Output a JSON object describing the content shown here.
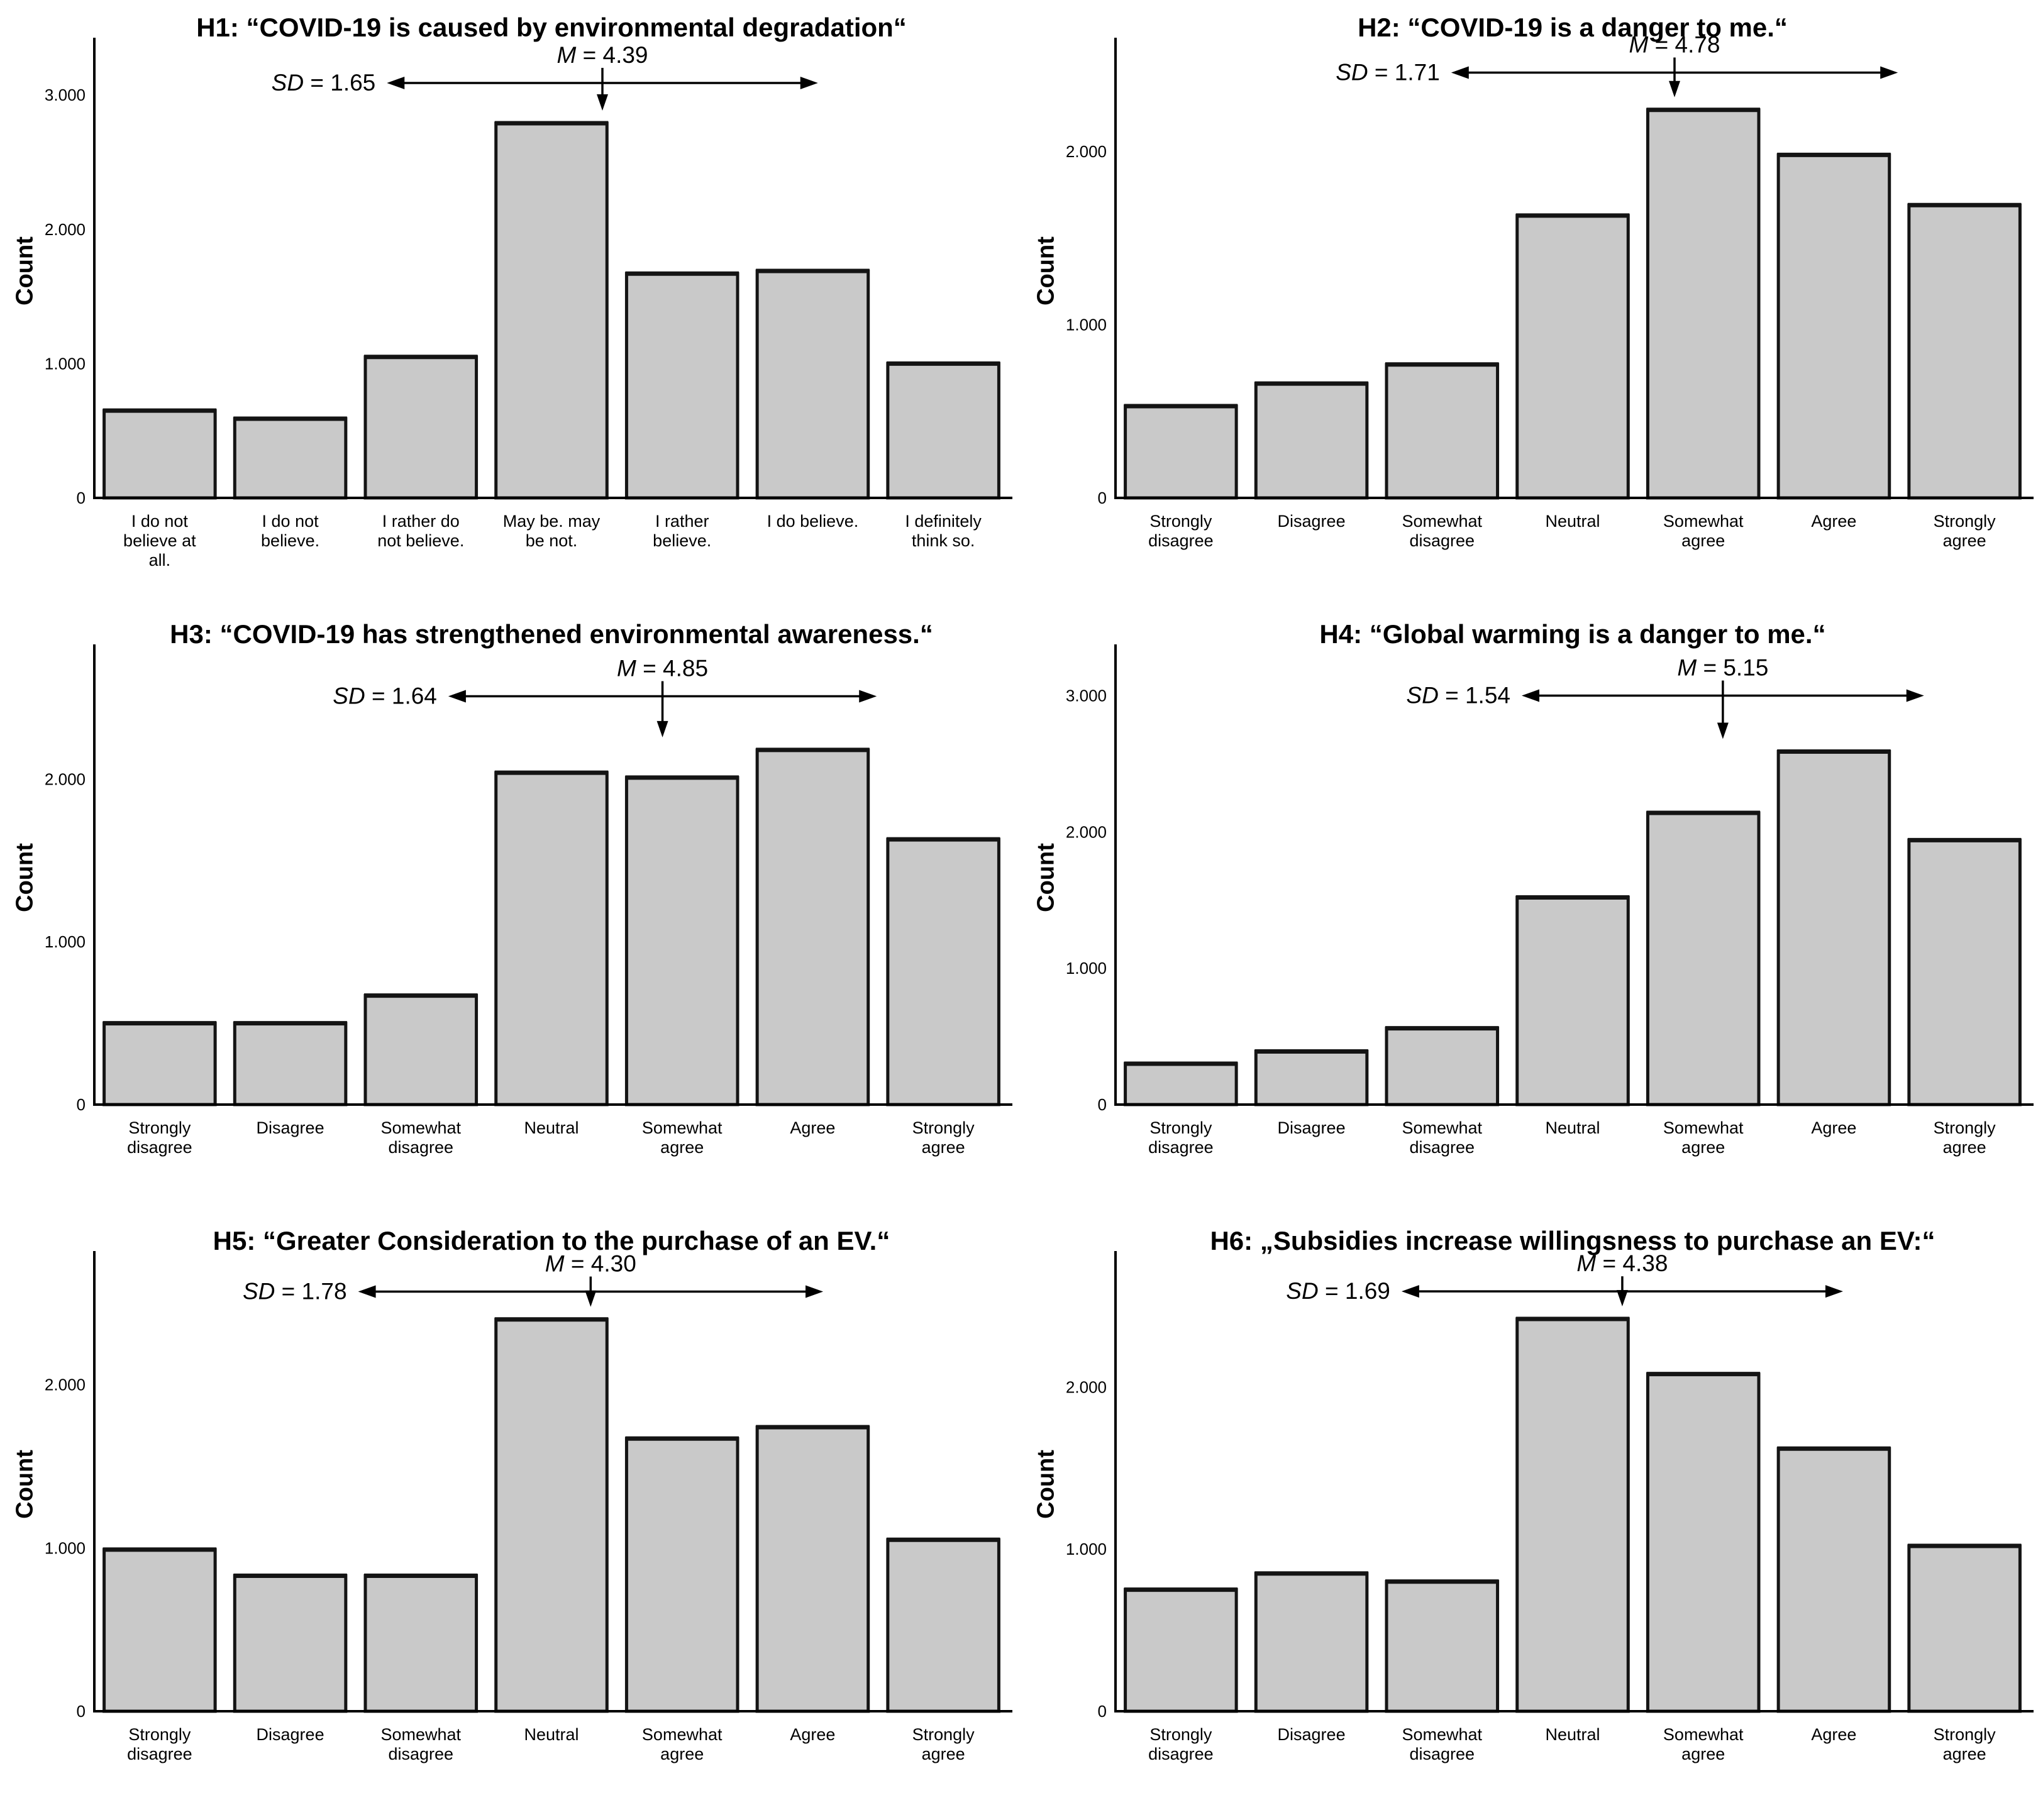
{
  "figure": {
    "background": "#ffffff",
    "text_color": "#000000",
    "bar_fill": "#c9c9c9",
    "bar_stroke": "#141414",
    "axis_color": "#000000"
  },
  "chart_data": [
    {
      "id": "H1",
      "type": "bar",
      "title": "H1: “COVID-19 is caused by environmental degradation“",
      "ylabel": "Count",
      "m_label": "M = 4.39",
      "sd_label": "SD = 1.65",
      "mean": 4.39,
      "sd": 1.65,
      "ymax": 3380,
      "arrow_y": 3090,
      "yticks": [
        {
          "value": 0,
          "label": "0"
        },
        {
          "value": 1000,
          "label": "1.000"
        },
        {
          "value": 2000,
          "label": "2.000"
        },
        {
          "value": 3000,
          "label": "3.000"
        }
      ],
      "categories": [
        [
          "I do not",
          "believe at",
          "all."
        ],
        [
          "I do not",
          "believe."
        ],
        [
          "I rather do",
          "not believe."
        ],
        [
          "May be. may",
          "be not."
        ],
        [
          "I rather",
          "believe."
        ],
        [
          "I do believe."
        ],
        [
          "I definitely",
          "think so."
        ]
      ],
      "values": [
        650,
        590,
        1050,
        2790,
        1670,
        1690,
        1000
      ]
    },
    {
      "id": "H2",
      "type": "bar",
      "title": "H2: “COVID-19 is a danger to me.“",
      "ylabel": "Count",
      "m_label": "M = 4.78",
      "sd_label": "SD = 1.71",
      "mean": 4.78,
      "sd": 1.71,
      "ymax": 2620,
      "arrow_y": 2455,
      "yticks": [
        {
          "value": 0,
          "label": "0"
        },
        {
          "value": 1000,
          "label": "1.000"
        },
        {
          "value": 2000,
          "label": "2.000"
        }
      ],
      "categories": [
        [
          "Strongly",
          "disagree"
        ],
        [
          "Disagree"
        ],
        [
          "Somewhat",
          "disagree"
        ],
        [
          "Neutral"
        ],
        [
          "Somewhat",
          "agree"
        ],
        [
          "Agree"
        ],
        [
          "Strongly",
          "agree"
        ]
      ],
      "values": [
        530,
        660,
        770,
        1630,
        2240,
        1980,
        1690
      ]
    },
    {
      "id": "H3",
      "type": "bar",
      "title": "H3: “COVID-19 has strengthened environmental awareness.“",
      "ylabel": "Count",
      "m_label": "M = 4.85",
      "sd_label": "SD = 1.64",
      "mean": 4.85,
      "sd": 1.64,
      "ymax": 2790,
      "arrow_y": 2510,
      "yticks": [
        {
          "value": 0,
          "label": "0"
        },
        {
          "value": 1000,
          "label": "1.000"
        },
        {
          "value": 2000,
          "label": "2.000"
        }
      ],
      "categories": [
        [
          "Strongly",
          "disagree"
        ],
        [
          "Disagree"
        ],
        [
          "Somewhat",
          "disagree"
        ],
        [
          "Neutral"
        ],
        [
          "Somewhat",
          "agree"
        ],
        [
          "Agree"
        ],
        [
          "Strongly",
          "agree"
        ]
      ],
      "values": [
        500,
        500,
        670,
        2040,
        2010,
        2180,
        1630
      ]
    },
    {
      "id": "H4",
      "type": "bar",
      "title": "H4: “Global warming is a danger to me.“",
      "ylabel": "Count",
      "m_label": "M = 5.15",
      "sd_label": "SD = 1.54",
      "mean": 5.15,
      "sd": 1.54,
      "ymax": 3330,
      "arrow_y": 3000,
      "yticks": [
        {
          "value": 0,
          "label": "0"
        },
        {
          "value": 1000,
          "label": "1.000"
        },
        {
          "value": 2000,
          "label": "2.000"
        },
        {
          "value": 3000,
          "label": "3.000"
        }
      ],
      "categories": [
        [
          "Strongly",
          "disagree"
        ],
        [
          "Disagree"
        ],
        [
          "Somewhat",
          "disagree"
        ],
        [
          "Neutral"
        ],
        [
          "Somewhat",
          "agree"
        ],
        [
          "Agree"
        ],
        [
          "Strongly",
          "agree"
        ]
      ],
      "values": [
        300,
        390,
        560,
        1520,
        2140,
        2590,
        1940
      ]
    },
    {
      "id": "H5",
      "type": "bar",
      "title": "H5: “Greater Consideration to the purchase of an EV.“",
      "ylabel": "Count",
      "m_label": "M = 4.30",
      "sd_label": "SD = 1.78",
      "mean": 4.3,
      "sd": 1.78,
      "ymax": 2780,
      "arrow_y": 2570,
      "yticks": [
        {
          "value": 0,
          "label": "0"
        },
        {
          "value": 1000,
          "label": "1.000"
        },
        {
          "value": 2000,
          "label": "2.000"
        }
      ],
      "categories": [
        [
          "Strongly",
          "disagree"
        ],
        [
          "Disagree"
        ],
        [
          "Somewhat",
          "disagree"
        ],
        [
          "Neutral"
        ],
        [
          "Somewhat",
          "agree"
        ],
        [
          "Agree"
        ],
        [
          "Strongly",
          "agree"
        ]
      ],
      "values": [
        990,
        830,
        830,
        2400,
        1670,
        1740,
        1050
      ]
    },
    {
      "id": "H6",
      "type": "bar",
      "title": "H6: „Subsidies increase willingsness to purchase an EV:“",
      "ylabel": "Count",
      "m_label": "M = 4.38",
      "sd_label": "SD = 1.69",
      "mean": 4.38,
      "sd": 1.69,
      "ymax": 2800,
      "arrow_y": 2590,
      "yticks": [
        {
          "value": 0,
          "label": "0"
        },
        {
          "value": 1000,
          "label": "1.000"
        },
        {
          "value": 2000,
          "label": "2.000"
        }
      ],
      "categories": [
        [
          "Strongly",
          "disagree"
        ],
        [
          "Disagree"
        ],
        [
          "Somewhat",
          "disagree"
        ],
        [
          "Neutral"
        ],
        [
          "Somewhat",
          "agree"
        ],
        [
          "Agree"
        ],
        [
          "Strongly",
          "agree"
        ]
      ],
      "values": [
        750,
        850,
        800,
        2420,
        2080,
        1620,
        1020
      ]
    }
  ]
}
